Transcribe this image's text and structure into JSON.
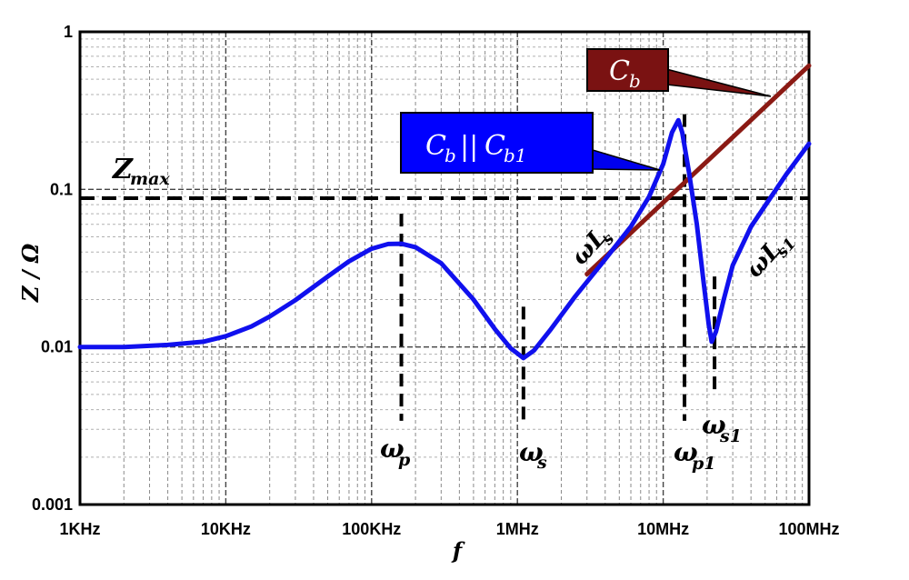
{
  "chart_data": {
    "type": "line",
    "title": "",
    "xlabel": "f",
    "ylabel": "Z / Ω",
    "x_scale": "log",
    "y_scale": "log",
    "xlim": [
      1000,
      100000000
    ],
    "ylim": [
      0.001,
      1
    ],
    "grid": true,
    "x_ticks": [
      {
        "value": 1000,
        "label": "1KHz"
      },
      {
        "value": 10000,
        "label": "10KHz"
      },
      {
        "value": 100000,
        "label": "100KHz"
      },
      {
        "value": 1000000,
        "label": "1MHz"
      },
      {
        "value": 10000000,
        "label": "10MHz"
      },
      {
        "value": 100000000,
        "label": "100MHz"
      }
    ],
    "y_ticks": [
      {
        "value": 0.001,
        "label": "0.001"
      },
      {
        "value": 0.01,
        "label": "0.01"
      },
      {
        "value": 0.1,
        "label": "0.1"
      },
      {
        "value": 1,
        "label": "1"
      }
    ],
    "series": [
      {
        "key": "cb_cb1",
        "color": "#1010ee",
        "points": [
          [
            1000,
            0.01
          ],
          [
            2000,
            0.01
          ],
          [
            4000,
            0.0103
          ],
          [
            7000,
            0.0108
          ],
          [
            10000,
            0.0117
          ],
          [
            15000,
            0.0135
          ],
          [
            20000,
            0.0156
          ],
          [
            30000,
            0.0198
          ],
          [
            50000,
            0.028
          ],
          [
            70000,
            0.035
          ],
          [
            100000,
            0.042
          ],
          [
            130000,
            0.045
          ],
          [
            160000,
            0.0452
          ],
          [
            200000,
            0.043
          ],
          [
            300000,
            0.034
          ],
          [
            500000,
            0.02
          ],
          [
            700000,
            0.013
          ],
          [
            900000,
            0.0098
          ],
          [
            1100000,
            0.0085
          ],
          [
            1300000,
            0.0095
          ],
          [
            1700000,
            0.013
          ],
          [
            2500000,
            0.021
          ],
          [
            4000000,
            0.036
          ],
          [
            6000000,
            0.058
          ],
          [
            8000000,
            0.09
          ],
          [
            10000000,
            0.145
          ],
          [
            11500000,
            0.23
          ],
          [
            12700000,
            0.275
          ],
          [
            13500000,
            0.23
          ],
          [
            15000000,
            0.13
          ],
          [
            17000000,
            0.06
          ],
          [
            19000000,
            0.025
          ],
          [
            20500000,
            0.014
          ],
          [
            21500000,
            0.0108
          ],
          [
            23000000,
            0.0125
          ],
          [
            26000000,
            0.02
          ],
          [
            30000000,
            0.033
          ],
          [
            40000000,
            0.058
          ],
          [
            55000000,
            0.09
          ],
          [
            70000000,
            0.125
          ],
          [
            100000000,
            0.195
          ]
        ]
      },
      {
        "key": "cb",
        "color": "#8b1a14",
        "points": [
          [
            3000000,
            0.029
          ],
          [
            100000000,
            0.61
          ]
        ]
      }
    ],
    "reference_lines": [
      {
        "label": "Z_max",
        "y": 0.088,
        "style": "dashed"
      }
    ],
    "markers": [
      {
        "label": "ω_p",
        "x": 160000,
        "y_top": 0.07,
        "y_bottom": 0.0034
      },
      {
        "label": "ω_s",
        "x": 1100000,
        "y_top": 0.018,
        "y_bottom": 0.0033
      },
      {
        "label": "ω_p1",
        "x": 14000000,
        "y_top": 0.3,
        "y_bottom": 0.0034
      },
      {
        "label": "ω_s1",
        "x": 22500000,
        "y_top": 0.028,
        "y_bottom": 0.0052
      }
    ],
    "annotations": [
      {
        "label": "ωL_s",
        "near": "rising slope"
      },
      {
        "label": "ωL_s1",
        "near": "right rising branch"
      }
    ],
    "callouts": [
      {
        "label": "C_b||C_b1",
        "color": "#0000ff",
        "series": "cb_cb1"
      },
      {
        "label": "C_b",
        "color": "#7a1212",
        "series": "cb"
      }
    ]
  }
}
